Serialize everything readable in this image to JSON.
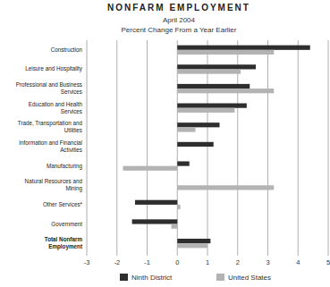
{
  "chart_data": {
    "type": "bar",
    "orientation": "horizontal",
    "title": "NONFARM EMPLOYMENT",
    "subtitle": [
      "April 2004",
      "Percent Change From a Year Earlier"
    ],
    "categories": [
      "Construction",
      "Leisure and Hospitality",
      "Professional and Business Services",
      "Education and Health Services",
      "Trade, Transportation and Utilities",
      "Information and Financial Activities",
      "Manufacturing",
      "Natural Resources and Mining",
      "Other Services*",
      "Government",
      "Total Nonfarm Employment"
    ],
    "series": [
      {
        "name": "Ninth District",
        "color": "#2e2e2e",
        "values": [
          4.4,
          2.6,
          2.4,
          2.3,
          1.4,
          1.2,
          0.4,
          0,
          -1.4,
          -1.5,
          1.1
        ]
      },
      {
        "name": "United States",
        "color": "#b3b3b3",
        "values": [
          3.2,
          2.1,
          3.2,
          1.9,
          0.6,
          0,
          -1.8,
          3.2,
          0.1,
          -0.2,
          1.0
        ]
      }
    ],
    "xlim": [
      -3,
      5
    ],
    "xticks": [
      -3,
      -2,
      -1,
      0,
      1,
      2,
      3,
      4,
      5
    ],
    "grid": true,
    "legend": "bottom"
  }
}
